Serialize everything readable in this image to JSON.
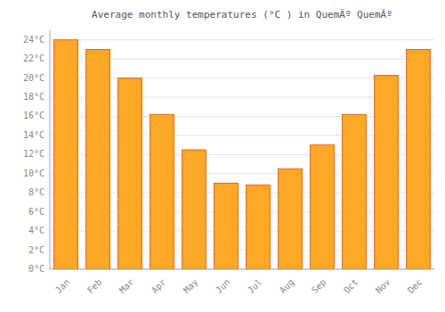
{
  "chart_data": {
    "type": "bar",
    "title": "Average monthly temperatures (°C ) in QuemÃº QuemÃº",
    "categories": [
      "Jan",
      "Feb",
      "Mar",
      "Apr",
      "May",
      "Jun",
      "Jul",
      "Aug",
      "Sep",
      "Oct",
      "Nov",
      "Dec"
    ],
    "values": [
      24,
      23,
      20,
      16.2,
      12.5,
      9,
      8.8,
      10.5,
      13,
      16.2,
      20.3,
      23
    ],
    "color": "#FFA726",
    "ylim": [
      0,
      25
    ],
    "yticks": [
      {
        "value": 0,
        "label": "0°C"
      },
      {
        "value": 2,
        "label": "2°C"
      },
      {
        "value": 4,
        "label": "4°C"
      },
      {
        "value": 6,
        "label": "6°C"
      },
      {
        "value": 8,
        "label": "8°C"
      },
      {
        "value": 10,
        "label": "10°C"
      },
      {
        "value": 12,
        "label": "12°C"
      },
      {
        "value": 14,
        "label": "14°C"
      },
      {
        "value": 16,
        "label": "16°C"
      },
      {
        "value": 18,
        "label": "18°C"
      },
      {
        "value": 20,
        "label": "20°C"
      },
      {
        "value": 22,
        "label": "22°C"
      },
      {
        "value": 24,
        "label": "24°C"
      }
    ],
    "grid": true
  }
}
